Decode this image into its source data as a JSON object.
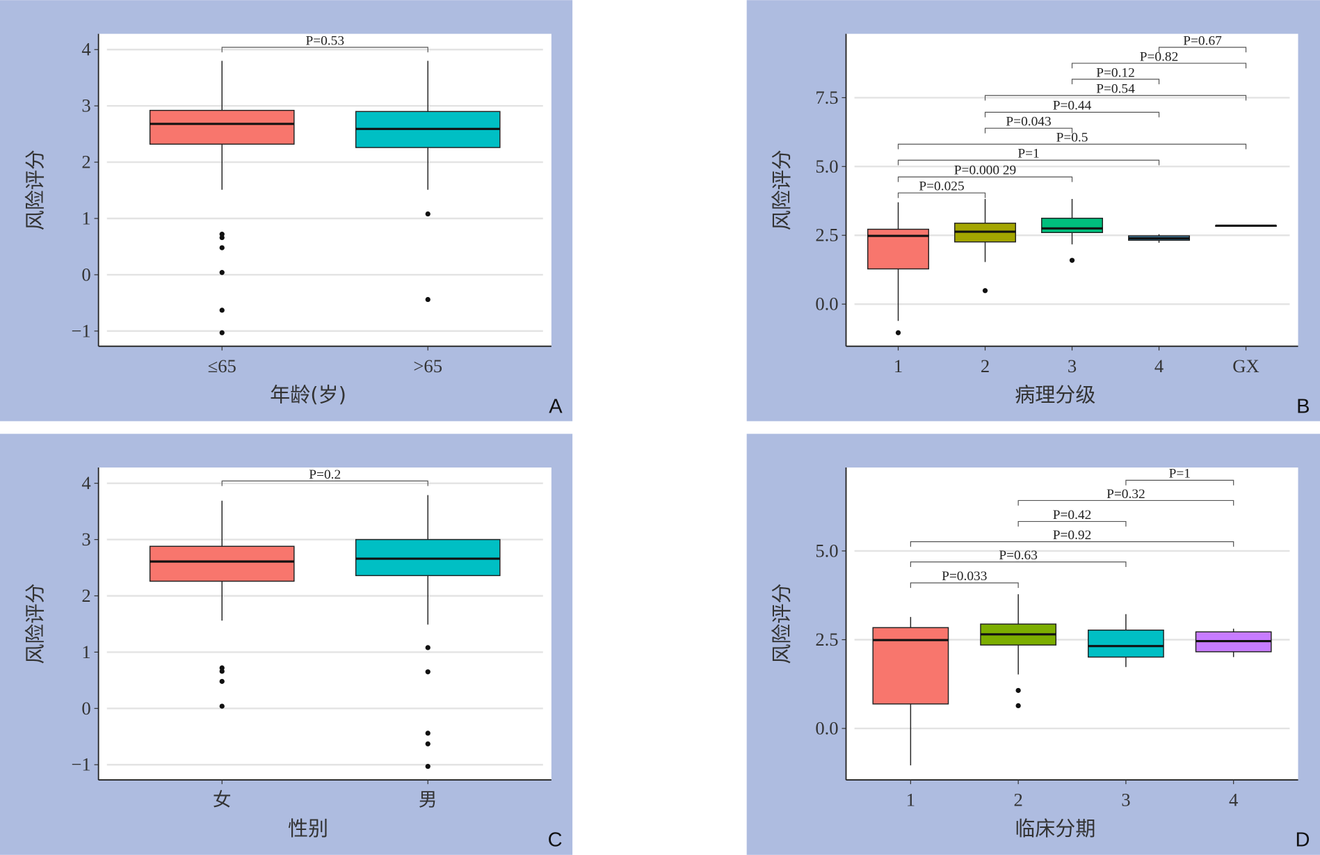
{
  "chart_data": [
    {
      "type": "box",
      "panel_label": "A",
      "xlabel": "年龄(岁)",
      "ylabel": "风险评分",
      "categories": [
        "≤65",
        ">65"
      ],
      "colors": [
        "#F8766D",
        "#00BFC4"
      ],
      "ylim": [
        -1.27,
        4.28
      ],
      "yticks": [
        {
          "v": -1,
          "label": "−1"
        },
        {
          "v": 0,
          "label": "0"
        },
        {
          "v": 1,
          "label": "1"
        },
        {
          "v": 2,
          "label": "2"
        },
        {
          "v": 3,
          "label": "3"
        },
        {
          "v": 4,
          "label": "4"
        }
      ],
      "boxes": [
        {
          "whisker_low": 1.51,
          "q1": 2.32,
          "median": 2.68,
          "q3": 2.92,
          "whisker_high": 3.8,
          "outliers": [
            0.72,
            0.66,
            0.48,
            0.04,
            -0.63,
            -1.03
          ]
        },
        {
          "whisker_low": 1.51,
          "q1": 2.26,
          "median": 2.59,
          "q3": 2.9,
          "whisker_high": 3.8,
          "outliers": [
            1.08,
            -0.44
          ]
        }
      ],
      "comparisons": [
        {
          "groups": [
            0,
            1
          ],
          "y": 4.04,
          "label": "P=0.53"
        }
      ]
    },
    {
      "type": "box",
      "panel_label": "B",
      "xlabel": "病理分级",
      "ylabel": "风险评分",
      "categories": [
        "1",
        "2",
        "3",
        "4",
        "GX"
      ],
      "colors": [
        "#F8766D",
        "#A3A500",
        "#00BF7D",
        "#3D7FA6",
        "#E76BF3"
      ],
      "ylim": [
        -1.53,
        9.82
      ],
      "yticks": [
        {
          "v": 0,
          "label": "0.0"
        },
        {
          "v": 2.5,
          "label": "2.5"
        },
        {
          "v": 5,
          "label": "5.0"
        },
        {
          "v": 7.5,
          "label": "7.5"
        }
      ],
      "boxes": [
        {
          "whisker_low": -0.61,
          "q1": 1.28,
          "median": 2.48,
          "q3": 2.72,
          "whisker_high": 3.7,
          "outliers": [
            -1.04
          ]
        },
        {
          "whisker_low": 1.53,
          "q1": 2.26,
          "median": 2.63,
          "q3": 2.94,
          "whisker_high": 3.82,
          "outliers": [
            0.49
          ]
        },
        {
          "whisker_low": 2.17,
          "q1": 2.6,
          "median": 2.75,
          "q3": 3.12,
          "whisker_high": 3.82,
          "outliers": [
            1.59
          ]
        },
        {
          "whisker_low": 2.23,
          "q1": 2.32,
          "median": 2.39,
          "q3": 2.48,
          "whisker_high": 2.54,
          "outliers": []
        },
        {
          "whisker_low": 2.85,
          "q1": 2.85,
          "median": 2.85,
          "q3": 2.85,
          "whisker_high": 2.85,
          "outliers": []
        }
      ],
      "comparisons": [
        {
          "groups": [
            0,
            1
          ],
          "y": 4.04,
          "label": "P=0.025"
        },
        {
          "groups": [
            0,
            2
          ],
          "y": 4.62,
          "label": "P=0.000 29"
        },
        {
          "groups": [
            0,
            3
          ],
          "y": 5.23,
          "label": "P=1"
        },
        {
          "groups": [
            0,
            4
          ],
          "y": 5.81,
          "label": "P=0.5"
        },
        {
          "groups": [
            1,
            2
          ],
          "y": 6.39,
          "label": "P=0.043"
        },
        {
          "groups": [
            1,
            3
          ],
          "y": 6.97,
          "label": "P=0.44"
        },
        {
          "groups": [
            1,
            4
          ],
          "y": 7.58,
          "label": "P=0.54"
        },
        {
          "groups": [
            2,
            3
          ],
          "y": 8.17,
          "label": "P=0.12"
        },
        {
          "groups": [
            2,
            4
          ],
          "y": 8.75,
          "label": "P=0.82"
        },
        {
          "groups": [
            3,
            4
          ],
          "y": 9.33,
          "label": "P=0.67"
        }
      ]
    },
    {
      "type": "box",
      "panel_label": "C",
      "xlabel": "性别",
      "ylabel": "风险评分",
      "categories": [
        "女",
        "男"
      ],
      "colors": [
        "#F8766D",
        "#00BFC4"
      ],
      "ylim": [
        -1.27,
        4.28
      ],
      "yticks": [
        {
          "v": -1,
          "label": "−1"
        },
        {
          "v": 0,
          "label": "0"
        },
        {
          "v": 1,
          "label": "1"
        },
        {
          "v": 2,
          "label": "2"
        },
        {
          "v": 3,
          "label": "3"
        },
        {
          "v": 4,
          "label": "4"
        }
      ],
      "boxes": [
        {
          "whisker_low": 1.56,
          "q1": 2.26,
          "median": 2.61,
          "q3": 2.88,
          "whisker_high": 3.69,
          "outliers": [
            0.72,
            0.66,
            0.48,
            0.04
          ]
        },
        {
          "whisker_low": 1.49,
          "q1": 2.36,
          "median": 2.66,
          "q3": 3.0,
          "whisker_high": 3.79,
          "outliers": [
            1.08,
            0.65,
            -0.44,
            -0.63,
            -1.03
          ]
        }
      ],
      "comparisons": [
        {
          "groups": [
            0,
            1
          ],
          "y": 4.04,
          "label": "P=0.2"
        }
      ]
    },
    {
      "type": "box",
      "panel_label": "D",
      "xlabel": "临床分期",
      "ylabel": "风险评分",
      "categories": [
        "1",
        "2",
        "3",
        "4"
      ],
      "colors": [
        "#F8766D",
        "#7CAE00",
        "#00BFC4",
        "#C77CFF"
      ],
      "ylim": [
        -1.45,
        7.35
      ],
      "yticks": [
        {
          "v": 0,
          "label": "0.0"
        },
        {
          "v": 2.5,
          "label": "2.5"
        },
        {
          "v": 5,
          "label": "5.0"
        }
      ],
      "boxes": [
        {
          "whisker_low": -1.04,
          "q1": 0.69,
          "median": 2.49,
          "q3": 2.84,
          "whisker_high": 3.14,
          "outliers": []
        },
        {
          "whisker_low": 1.52,
          "q1": 2.35,
          "median": 2.65,
          "q3": 2.94,
          "whisker_high": 3.78,
          "outliers": [
            1.07,
            0.64
          ]
        },
        {
          "whisker_low": 1.73,
          "q1": 2.01,
          "median": 2.32,
          "q3": 2.77,
          "whisker_high": 3.22,
          "outliers": []
        },
        {
          "whisker_low": 2.01,
          "q1": 2.16,
          "median": 2.46,
          "q3": 2.72,
          "whisker_high": 2.81,
          "outliers": []
        }
      ],
      "comparisons": [
        {
          "groups": [
            0,
            1
          ],
          "y": 4.1,
          "label": "P=0.033"
        },
        {
          "groups": [
            0,
            2
          ],
          "y": 4.69,
          "label": "P=0.63"
        },
        {
          "groups": [
            0,
            3
          ],
          "y": 5.26,
          "label": "P=0.92"
        },
        {
          "groups": [
            1,
            2
          ],
          "y": 5.83,
          "label": "P=0.42"
        },
        {
          "groups": [
            1,
            3
          ],
          "y": 6.42,
          "label": "P=0.32"
        },
        {
          "groups": [
            2,
            3
          ],
          "y": 6.99,
          "label": "P=1"
        }
      ]
    }
  ]
}
